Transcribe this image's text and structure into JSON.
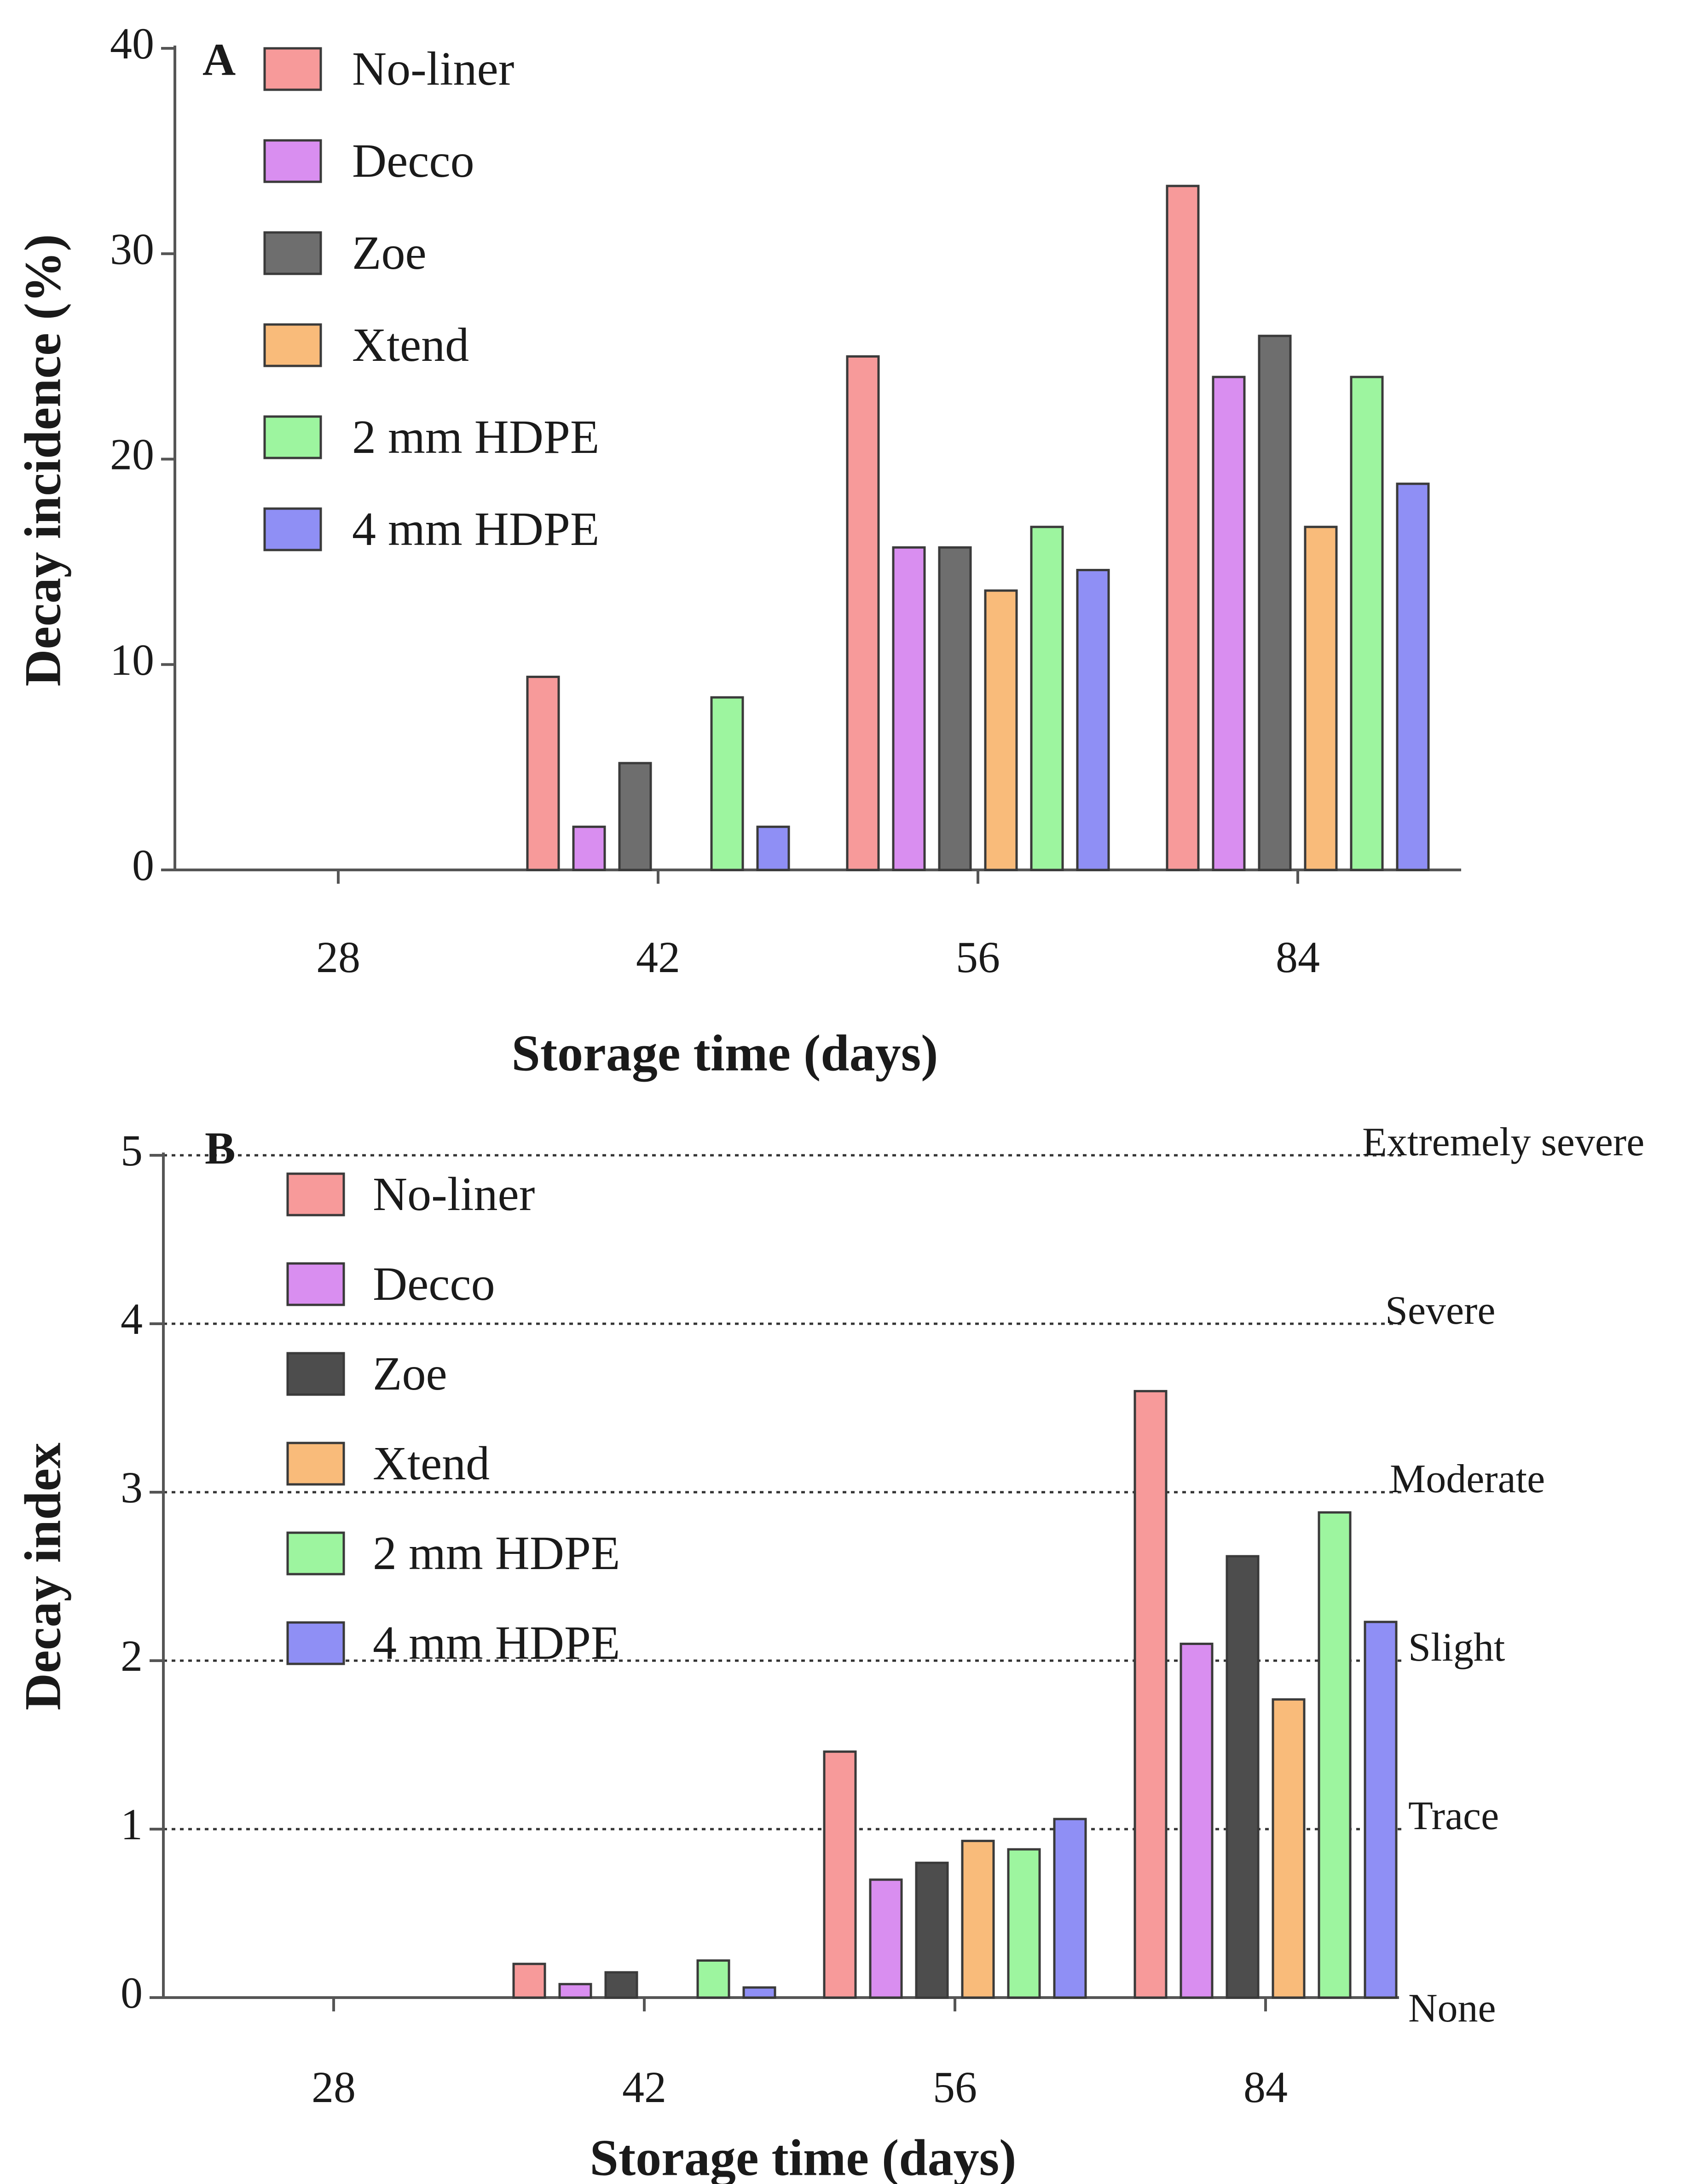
{
  "chart_data": [
    {
      "type": "bar",
      "panel_label": "A",
      "title": "",
      "xlabel": "Storage time (days)",
      "ylabel": "Decay incidence (%)",
      "categories": [
        "28",
        "42",
        "56",
        "84"
      ],
      "ylim": [
        0,
        40
      ],
      "yticks": [
        0,
        10,
        20,
        30,
        40
      ],
      "legend_position": "top-left",
      "series": [
        {
          "name": "No-liner",
          "color": "#f79a9a",
          "values": [
            0,
            9.4,
            25.0,
            33.3
          ]
        },
        {
          "name": "Decco",
          "color": "#d98ef0",
          "values": [
            0,
            2.1,
            15.7,
            24.0
          ]
        },
        {
          "name": "Zoe",
          "color": "#6e6e6e",
          "values": [
            0,
            5.2,
            15.7,
            26.0
          ]
        },
        {
          "name": "Xtend",
          "color": "#f9bb7a",
          "values": [
            0,
            0,
            13.6,
            16.7
          ]
        },
        {
          "name": "2 mm HDPE",
          "color": "#9df59f",
          "values": [
            0,
            8.4,
            16.7,
            24.0
          ]
        },
        {
          "name": "4 mm HDPE",
          "color": "#8f8ff5",
          "values": [
            0,
            2.1,
            14.6,
            18.8
          ]
        }
      ]
    },
    {
      "type": "bar",
      "panel_label": "B",
      "title": "",
      "xlabel": "Storage time (days)",
      "ylabel": "Decay index",
      "categories": [
        "28",
        "42",
        "56",
        "84"
      ],
      "ylim": [
        0,
        5
      ],
      "yticks": [
        0,
        1,
        2,
        3,
        4,
        5
      ],
      "legend_position": "top-left",
      "reference_lines": [
        {
          "value": 0,
          "label": "None"
        },
        {
          "value": 1,
          "label": "Trace"
        },
        {
          "value": 2,
          "label": "Slight"
        },
        {
          "value": 3,
          "label": "Moderate"
        },
        {
          "value": 4,
          "label": "Severe"
        },
        {
          "value": 5,
          "label": "Extremely severe"
        }
      ],
      "series": [
        {
          "name": "No-liner",
          "color": "#f79a9a",
          "values": [
            0,
            0.2,
            1.46,
            3.6
          ]
        },
        {
          "name": "Decco",
          "color": "#d98ef0",
          "values": [
            0,
            0.08,
            0.7,
            2.1
          ]
        },
        {
          "name": "Zoe",
          "color": "#4d4d4d",
          "values": [
            0,
            0.15,
            0.8,
            2.62
          ]
        },
        {
          "name": "Xtend",
          "color": "#f9bb7a",
          "values": [
            0,
            0,
            0.93,
            1.77
          ]
        },
        {
          "name": "2 mm HDPE",
          "color": "#9df59f",
          "values": [
            0,
            0.22,
            0.88,
            2.88
          ]
        },
        {
          "name": "4 mm HDPE",
          "color": "#8f8ff5",
          "values": [
            0,
            0.06,
            1.06,
            2.23
          ]
        }
      ]
    }
  ]
}
